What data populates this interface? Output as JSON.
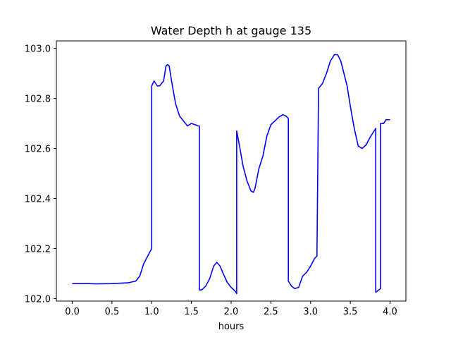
{
  "chart_data": {
    "type": "line",
    "title": "Water Depth h at gauge 135",
    "xlabel": "hours",
    "ylabel": "",
    "xlim": [
      -0.2,
      4.2
    ],
    "ylim": [
      101.99,
      103.03
    ],
    "xticks": [
      0.0,
      0.5,
      1.0,
      1.5,
      2.0,
      2.5,
      3.0,
      3.5,
      4.0
    ],
    "xtick_labels": [
      "0.0",
      "0.5",
      "1.0",
      "1.5",
      "2.0",
      "2.5",
      "3.0",
      "3.5",
      "4.0"
    ],
    "yticks": [
      102.0,
      102.2,
      102.4,
      102.6,
      102.8,
      103.0
    ],
    "ytick_labels": [
      "102.0",
      "102.2",
      "102.4",
      "102.6",
      "102.8",
      "103.0"
    ],
    "grid": false,
    "legend": "none",
    "line_color": "#0000ff",
    "series": [
      {
        "x": [
          0.0,
          0.2,
          0.3,
          0.5,
          0.7,
          0.8,
          0.85,
          0.9,
          0.95,
          1.0,
          1.0,
          1.03,
          1.07,
          1.1,
          1.15,
          1.18,
          1.2,
          1.22,
          1.25,
          1.3,
          1.35,
          1.4,
          1.45,
          1.5,
          1.55,
          1.58,
          1.6,
          1.6,
          1.63,
          1.68,
          1.73,
          1.78,
          1.82,
          1.86,
          1.9,
          1.95,
          2.0,
          2.05,
          2.07,
          2.07,
          2.1,
          2.15,
          2.2,
          2.25,
          2.28,
          2.3,
          2.35,
          2.4,
          2.45,
          2.5,
          2.55,
          2.6,
          2.65,
          2.69,
          2.72,
          2.72,
          2.76,
          2.8,
          2.85,
          2.9,
          2.95,
          3.0,
          3.05,
          3.08,
          3.1,
          3.1,
          3.15,
          3.2,
          3.25,
          3.3,
          3.34,
          3.38,
          3.42,
          3.46,
          3.5,
          3.55,
          3.6,
          3.65,
          3.7,
          3.75,
          3.8,
          3.82,
          3.82,
          3.86,
          3.88,
          3.88,
          3.92,
          3.95,
          4.0
        ],
        "y": [
          102.06,
          102.06,
          102.059,
          102.06,
          102.063,
          102.07,
          102.09,
          102.14,
          102.17,
          102.2,
          102.85,
          102.87,
          102.85,
          102.85,
          102.87,
          102.93,
          102.935,
          102.93,
          102.87,
          102.78,
          102.73,
          102.71,
          102.69,
          102.7,
          102.695,
          102.69,
          102.69,
          102.035,
          102.035,
          102.05,
          102.08,
          102.13,
          102.145,
          102.13,
          102.1,
          102.065,
          102.045,
          102.03,
          102.02,
          102.67,
          102.62,
          102.53,
          102.47,
          102.43,
          102.425,
          102.44,
          102.52,
          102.57,
          102.65,
          102.695,
          102.71,
          102.725,
          102.735,
          102.73,
          102.72,
          102.07,
          102.05,
          102.04,
          102.045,
          102.09,
          102.105,
          102.13,
          102.16,
          102.17,
          102.82,
          102.84,
          102.86,
          102.9,
          102.95,
          102.975,
          102.975,
          102.95,
          102.9,
          102.85,
          102.77,
          102.68,
          102.61,
          102.6,
          102.615,
          102.645,
          102.67,
          102.68,
          102.025,
          102.035,
          102.04,
          102.7,
          102.7,
          102.715,
          102.715
        ]
      }
    ]
  }
}
